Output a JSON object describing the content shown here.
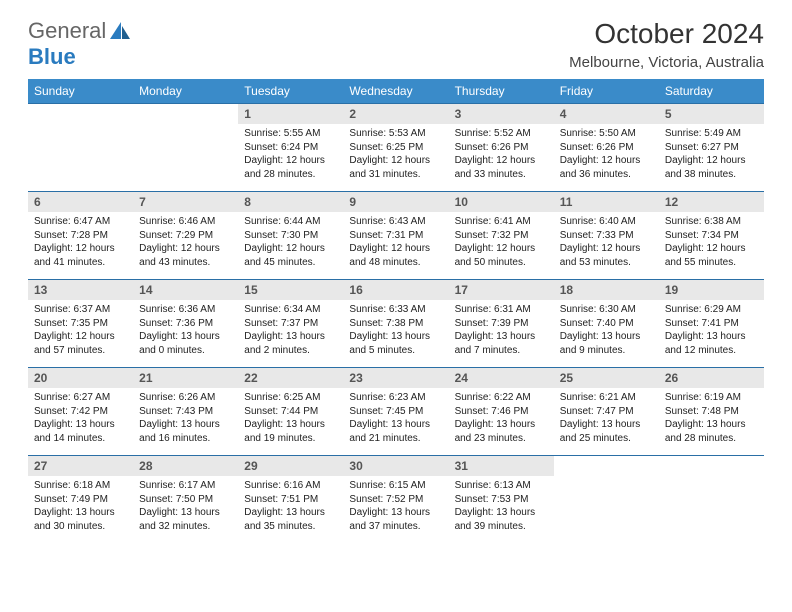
{
  "logo": {
    "part1": "General",
    "part2": "Blue"
  },
  "title": "October 2024",
  "location": "Melbourne, Victoria, Australia",
  "colors": {
    "header_bg": "#3a8bc9",
    "header_text": "#ffffff",
    "daynum_bg": "#e8e8e8",
    "row_divider": "#2a6fa6",
    "logo_gray": "#666666",
    "logo_blue": "#2a7bbf"
  },
  "day_headers": [
    "Sunday",
    "Monday",
    "Tuesday",
    "Wednesday",
    "Thursday",
    "Friday",
    "Saturday"
  ],
  "weeks": [
    [
      null,
      null,
      {
        "n": "1",
        "sr": "5:55 AM",
        "ss": "6:24 PM",
        "dh": "12",
        "dm": "28"
      },
      {
        "n": "2",
        "sr": "5:53 AM",
        "ss": "6:25 PM",
        "dh": "12",
        "dm": "31"
      },
      {
        "n": "3",
        "sr": "5:52 AM",
        "ss": "6:26 PM",
        "dh": "12",
        "dm": "33"
      },
      {
        "n": "4",
        "sr": "5:50 AM",
        "ss": "6:26 PM",
        "dh": "12",
        "dm": "36"
      },
      {
        "n": "5",
        "sr": "5:49 AM",
        "ss": "6:27 PM",
        "dh": "12",
        "dm": "38"
      }
    ],
    [
      {
        "n": "6",
        "sr": "6:47 AM",
        "ss": "7:28 PM",
        "dh": "12",
        "dm": "41"
      },
      {
        "n": "7",
        "sr": "6:46 AM",
        "ss": "7:29 PM",
        "dh": "12",
        "dm": "43"
      },
      {
        "n": "8",
        "sr": "6:44 AM",
        "ss": "7:30 PM",
        "dh": "12",
        "dm": "45"
      },
      {
        "n": "9",
        "sr": "6:43 AM",
        "ss": "7:31 PM",
        "dh": "12",
        "dm": "48"
      },
      {
        "n": "10",
        "sr": "6:41 AM",
        "ss": "7:32 PM",
        "dh": "12",
        "dm": "50"
      },
      {
        "n": "11",
        "sr": "6:40 AM",
        "ss": "7:33 PM",
        "dh": "12",
        "dm": "53"
      },
      {
        "n": "12",
        "sr": "6:38 AM",
        "ss": "7:34 PM",
        "dh": "12",
        "dm": "55"
      }
    ],
    [
      {
        "n": "13",
        "sr": "6:37 AM",
        "ss": "7:35 PM",
        "dh": "12",
        "dm": "57"
      },
      {
        "n": "14",
        "sr": "6:36 AM",
        "ss": "7:36 PM",
        "dh": "13",
        "dm": "0"
      },
      {
        "n": "15",
        "sr": "6:34 AM",
        "ss": "7:37 PM",
        "dh": "13",
        "dm": "2"
      },
      {
        "n": "16",
        "sr": "6:33 AM",
        "ss": "7:38 PM",
        "dh": "13",
        "dm": "5"
      },
      {
        "n": "17",
        "sr": "6:31 AM",
        "ss": "7:39 PM",
        "dh": "13",
        "dm": "7"
      },
      {
        "n": "18",
        "sr": "6:30 AM",
        "ss": "7:40 PM",
        "dh": "13",
        "dm": "9"
      },
      {
        "n": "19",
        "sr": "6:29 AM",
        "ss": "7:41 PM",
        "dh": "13",
        "dm": "12"
      }
    ],
    [
      {
        "n": "20",
        "sr": "6:27 AM",
        "ss": "7:42 PM",
        "dh": "13",
        "dm": "14"
      },
      {
        "n": "21",
        "sr": "6:26 AM",
        "ss": "7:43 PM",
        "dh": "13",
        "dm": "16"
      },
      {
        "n": "22",
        "sr": "6:25 AM",
        "ss": "7:44 PM",
        "dh": "13",
        "dm": "19"
      },
      {
        "n": "23",
        "sr": "6:23 AM",
        "ss": "7:45 PM",
        "dh": "13",
        "dm": "21"
      },
      {
        "n": "24",
        "sr": "6:22 AM",
        "ss": "7:46 PM",
        "dh": "13",
        "dm": "23"
      },
      {
        "n": "25",
        "sr": "6:21 AM",
        "ss": "7:47 PM",
        "dh": "13",
        "dm": "25"
      },
      {
        "n": "26",
        "sr": "6:19 AM",
        "ss": "7:48 PM",
        "dh": "13",
        "dm": "28"
      }
    ],
    [
      {
        "n": "27",
        "sr": "6:18 AM",
        "ss": "7:49 PM",
        "dh": "13",
        "dm": "30"
      },
      {
        "n": "28",
        "sr": "6:17 AM",
        "ss": "7:50 PM",
        "dh": "13",
        "dm": "32"
      },
      {
        "n": "29",
        "sr": "6:16 AM",
        "ss": "7:51 PM",
        "dh": "13",
        "dm": "35"
      },
      {
        "n": "30",
        "sr": "6:15 AM",
        "ss": "7:52 PM",
        "dh": "13",
        "dm": "37"
      },
      {
        "n": "31",
        "sr": "6:13 AM",
        "ss": "7:53 PM",
        "dh": "13",
        "dm": "39"
      },
      null,
      null
    ]
  ],
  "labels": {
    "sunrise": "Sunrise:",
    "sunset": "Sunset:",
    "daylight": "Daylight:",
    "hours": "hours",
    "and": "and",
    "minutes": "minutes."
  }
}
